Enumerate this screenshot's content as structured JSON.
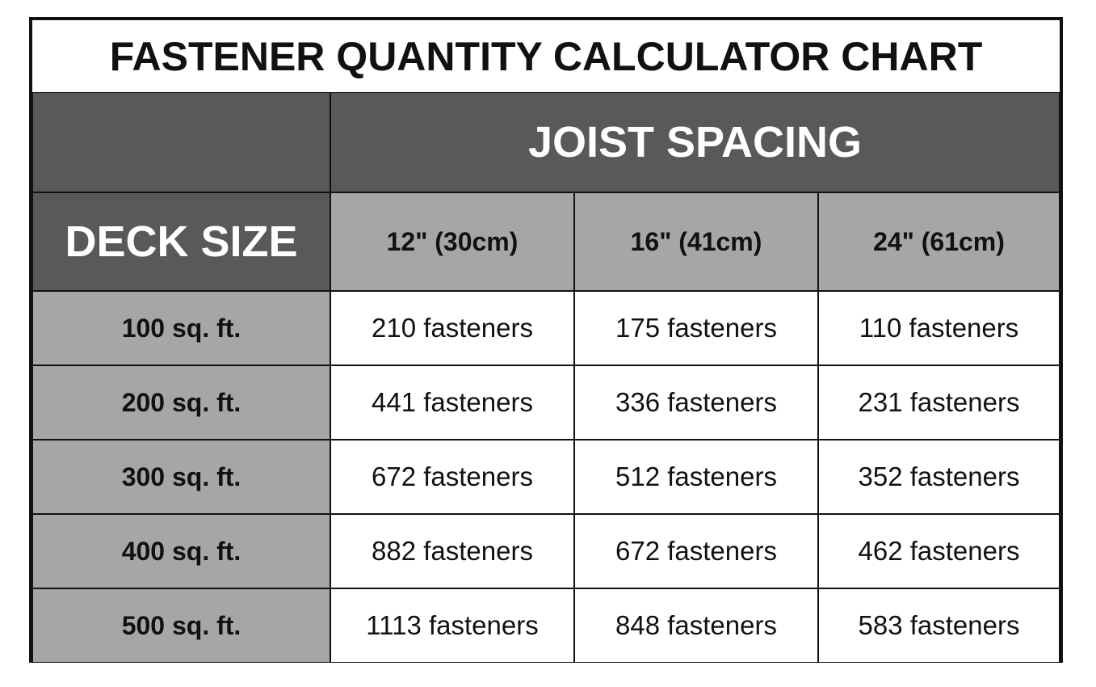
{
  "title": "FASTENER QUANTITY CALCULATOR CHART",
  "table": {
    "group_header": "JOIST SPACING",
    "row_header": "DECK SIZE",
    "columns": [
      "12\" (30cm)",
      "16\" (41cm)",
      "24\" (61cm)"
    ],
    "rows": [
      {
        "label": "100 sq. ft.",
        "cells": [
          "210 fasteners",
          "175 fasteners",
          "110 fasteners"
        ]
      },
      {
        "label": "200 sq. ft.",
        "cells": [
          "441 fasteners",
          "336 fasteners",
          "231 fasteners"
        ]
      },
      {
        "label": "300 sq. ft.",
        "cells": [
          "672 fasteners",
          "512 fasteners",
          "352 fasteners"
        ]
      },
      {
        "label": "400 sq. ft.",
        "cells": [
          "882 fasteners",
          "672 fasteners",
          "462 fasteners"
        ]
      },
      {
        "label": "500 sq. ft.",
        "cells": [
          "1113 fasteners",
          "848 fasteners",
          "583 fasteners"
        ]
      }
    ]
  }
}
